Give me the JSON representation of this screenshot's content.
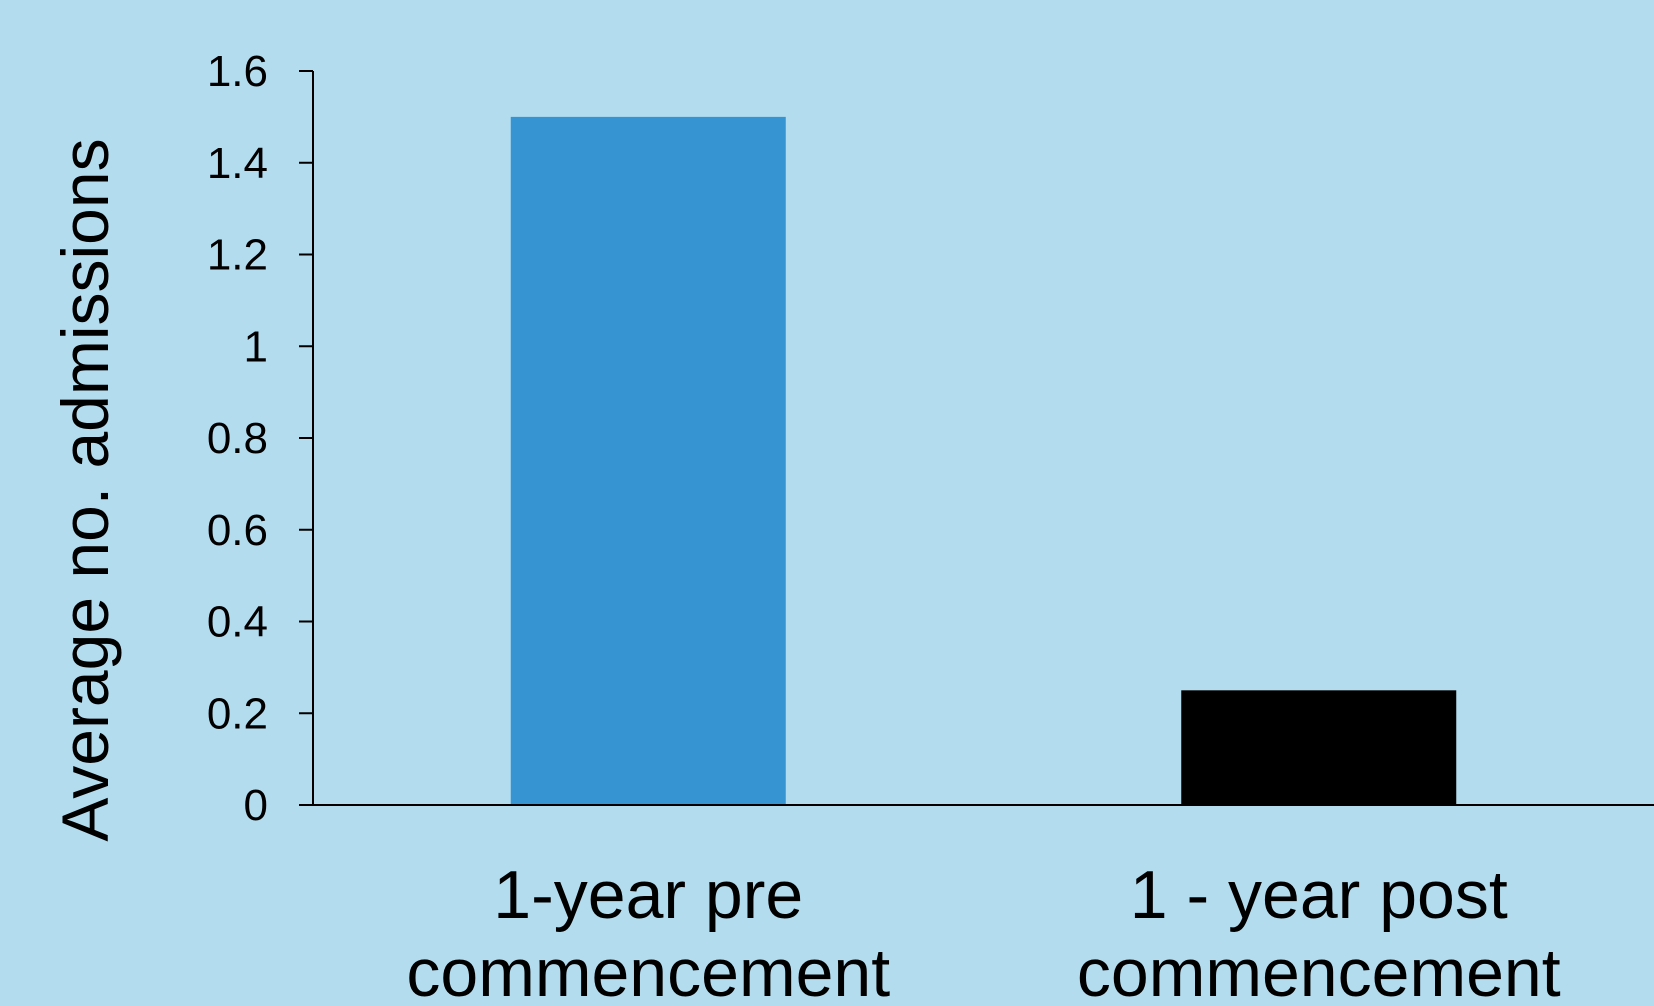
{
  "chart_data": {
    "type": "bar",
    "categories": [
      [
        "1-year pre",
        "commencement"
      ],
      [
        "1 - year post",
        "commencement"
      ]
    ],
    "values": [
      1.5,
      0.25
    ],
    "bar_colors": [
      "#3594d1",
      "#000000"
    ],
    "title": "",
    "xlabel": "",
    "ylabel": "Average no. admissions",
    "ylim": [
      0,
      1.6
    ],
    "yticks": [
      "0",
      "0.2",
      "0.4",
      "0.6",
      "0.8",
      "1",
      "1.2",
      "1.4",
      "1.6"
    ],
    "grid": false,
    "legend": "none"
  },
  "colors": {
    "background": "#b3ddef",
    "axis": "#000000"
  }
}
